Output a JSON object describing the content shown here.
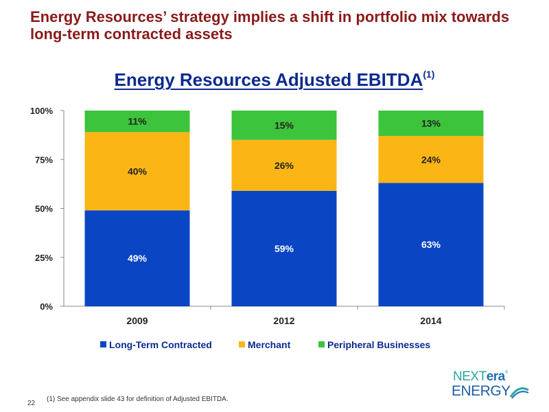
{
  "slide": {
    "headline": "Energy Resources’ strategy implies a shift in portfolio mix towards long-term contracted assets",
    "page_number": "22",
    "footnote": "(1)  See appendix slide 43 for definition of Adjusted EBITDA."
  },
  "logo": {
    "part1": "NEXT",
    "part2": "era",
    "mark": "®",
    "part3": "ENERGY"
  },
  "chart_data": {
    "type": "bar",
    "stacked": true,
    "title": "Energy Resources Adjusted EBITDA",
    "title_note": "(1)",
    "categories": [
      "2009",
      "2012",
      "2014"
    ],
    "series": [
      {
        "name": "Long-Term Contracted",
        "values": [
          49,
          59,
          63
        ],
        "labels": [
          "49%",
          "59%",
          "63%"
        ],
        "color": "#0a46c4"
      },
      {
        "name": "Merchant",
        "values": [
          40,
          26,
          24
        ],
        "labels": [
          "40%",
          "26%",
          "24%"
        ],
        "color": "#fbb616"
      },
      {
        "name": "Peripheral Businesses",
        "values": [
          11,
          15,
          13
        ],
        "labels": [
          "11%",
          "15%",
          "13%"
        ],
        "color": "#3cc43c"
      }
    ],
    "y_ticks": [
      0,
      25,
      50,
      75,
      100
    ],
    "y_tick_labels": [
      "0%",
      "25%",
      "50%",
      "75%",
      "100%"
    ],
    "ylim": [
      0,
      100
    ],
    "grid": false,
    "legend_position": "bottom"
  }
}
